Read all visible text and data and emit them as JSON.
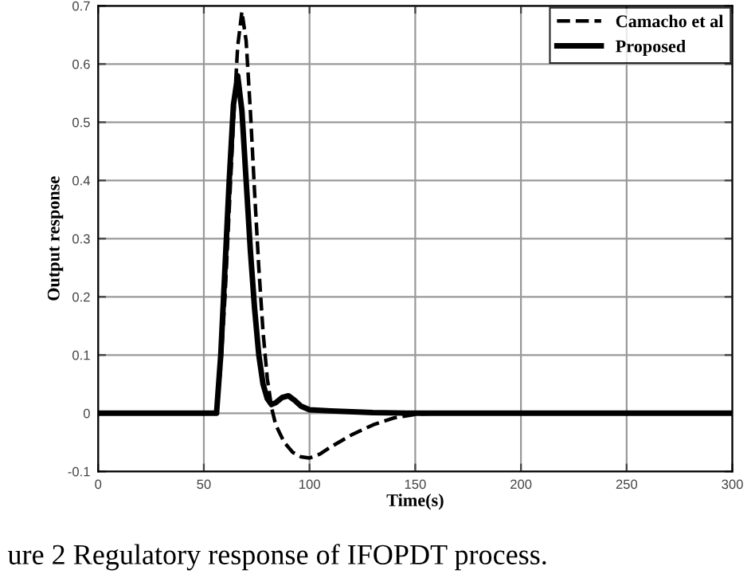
{
  "chart_data": {
    "type": "line",
    "xlabel": "Time(s)",
    "ylabel": "Output response",
    "annotations": [
      "ure 2 Regulatory response of IFOPDT process."
    ],
    "series": [
      {
        "name": "Camacho et al",
        "color": "#000000",
        "line_style": "dashed",
        "x": [
          0,
          56,
          58,
          60,
          62,
          64,
          66,
          68,
          70,
          72,
          74,
          76,
          78,
          80,
          82,
          84,
          88,
          92,
          96,
          100,
          105,
          110,
          120,
          130,
          140,
          150,
          160,
          300
        ],
        "values": [
          0,
          0,
          0.08,
          0.2,
          0.35,
          0.5,
          0.63,
          0.69,
          0.64,
          0.52,
          0.38,
          0.25,
          0.14,
          0.06,
          0.01,
          -0.02,
          -0.05,
          -0.067,
          -0.075,
          -0.077,
          -0.07,
          -0.058,
          -0.037,
          -0.02,
          -0.008,
          -0.002,
          0,
          0
        ]
      },
      {
        "name": "Proposed",
        "color": "#000000",
        "line_style": "solid",
        "x": [
          0,
          56,
          58,
          60,
          62,
          64,
          66,
          68,
          70,
          72,
          74,
          76,
          78,
          80,
          82,
          84,
          87,
          90,
          93,
          96,
          100,
          110,
          130,
          150,
          300
        ],
        "values": [
          0,
          0,
          0.1,
          0.25,
          0.4,
          0.53,
          0.58,
          0.52,
          0.4,
          0.28,
          0.18,
          0.1,
          0.05,
          0.025,
          0.015,
          0.018,
          0.027,
          0.03,
          0.022,
          0.012,
          0.006,
          0.004,
          0.001,
          0,
          0
        ]
      }
    ],
    "xlim": [
      0,
      300
    ],
    "xticks": [
      0,
      50,
      100,
      150,
      200,
      250,
      300
    ],
    "ylim": [
      -0.1,
      0.7
    ],
    "yticks": [
      -0.1,
      0,
      0.1,
      0.2,
      0.3,
      0.4,
      0.5,
      0.6,
      0.7
    ],
    "grid": true,
    "legend": "top right"
  }
}
